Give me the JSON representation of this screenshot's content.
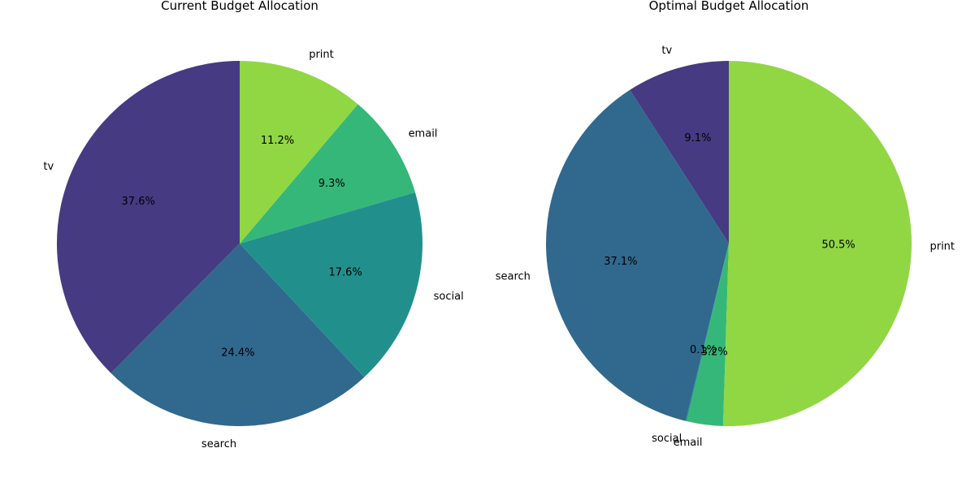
{
  "chart_data": [
    {
      "type": "pie",
      "title": "Current Budget Allocation",
      "categories": [
        "tv",
        "search",
        "social",
        "email",
        "print"
      ],
      "values": [
        37.6,
        24.4,
        17.6,
        9.3,
        11.2
      ],
      "value_labels": [
        "37.6%",
        "24.4%",
        "17.6%",
        "9.3%",
        "11.2%"
      ],
      "colors": [
        "#463a82",
        "#31688e",
        "#21908c",
        "#35b779",
        "#90d743"
      ],
      "start": "top",
      "direction": "counterclockwise",
      "legend": "none"
    },
    {
      "type": "pie",
      "title": "Optimal Budget Allocation",
      "categories": [
        "tv",
        "search",
        "social",
        "email",
        "print"
      ],
      "values": [
        9.1,
        37.1,
        0.1,
        3.2,
        50.5
      ],
      "value_labels": [
        "9.1%",
        "37.1%",
        "0.1%",
        "3.2%",
        "50.5%"
      ],
      "colors": [
        "#463a82",
        "#31688e",
        "#21908c",
        "#35b779",
        "#90d743"
      ],
      "start": "top",
      "direction": "counterclockwise",
      "legend": "none"
    }
  ]
}
